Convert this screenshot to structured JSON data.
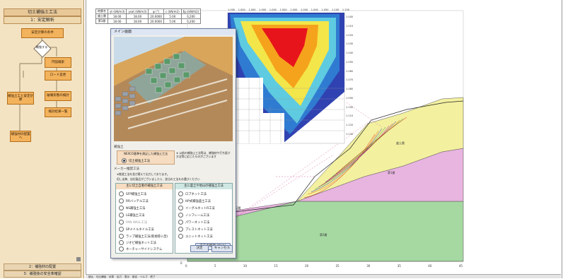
{
  "left_panel": {
    "title": "切土補強土工法",
    "section1": "1：安定解析",
    "flow": {
      "design_conditions": "安定計算の条件",
      "decision": "補強する",
      "circular_slip": "円弧検索",
      "data_setting": "ロード変更",
      "failure_mode": "破壊形態の検討",
      "result_list": "検討結果一覧",
      "search_calc": "補強土工と安定計算",
      "final": "補強材の配置へ"
    },
    "section2": "2：補強材の配置",
    "section3": "3：補強後の安全率確認"
  },
  "soil_table": {
    "headers": [
      "地層名",
      "γt (kN/m3)",
      "γsat (kN/m3)",
      "φ (°)",
      "c (kN/m2)",
      "Ep (kN/m2)"
    ],
    "rows": [
      [
        "盛土層",
        "18.00",
        "18.00",
        "20.0000",
        "5.00",
        "6,200"
      ],
      [
        "第1層",
        "18.00",
        "18.00",
        "20.0000",
        "5.00",
        "6,200"
      ]
    ]
  },
  "dialog": {
    "title": "メイン画面",
    "reinforce_label": "補強土",
    "option_main": "NEXCO基準を満足した補強土工法",
    "option_main_radio": "切土補強土工法",
    "note": "※ 以前の補強土工法等は、補強材や打ち設け方法等に応じたものがございます",
    "maker_label": "メーカー推奨工法",
    "maker_note": "※推奨工法を並び替えて出力しております。",
    "maker_note2": "但し出典、自社製品がございましたら、該当の工法をお選びください",
    "group_left_title": "主に切土自重の補強土工法",
    "group_right_title": "主に盛土や地山の補強土工法",
    "left_options": [
      "SFP補強土工法",
      "RRバッテル工法",
      "NS補強土工法",
      "LE補強土工法",
      "PAN WALL工法",
      "SPメイルネイル工法",
      "ラップ補強土工法(新規導入型)",
      "ジオピ補強ネット工法",
      "ネーチャーサイドシステム"
    ],
    "right_options": [
      "ロブネット工法",
      "HP式補強盛土工法",
      "イーグルネットR工法",
      "ノンフレーム工法",
      "パワーネット工法",
      "プレストネット工法",
      "ユニットネット工法"
    ],
    "detail_button": "工法の概要 (Web)",
    "ok_button": "決定",
    "cancel_button": "キャンセル"
  },
  "contour": {
    "top_labels": [
      "1.000",
      "1.000",
      "1.000",
      "1.000",
      "1.000",
      "1.000",
      "1.000",
      "1.000",
      "1.000",
      "1.050",
      "1.100",
      "1.150"
    ],
    "right_labels": [
      "1.000",
      "1.010",
      "1.020",
      "1.030",
      "1.040",
      "1.050",
      "1.060",
      "1.070",
      "1.080",
      "1.090",
      "1.100",
      "1.110",
      "1.120",
      "1.130"
    ]
  },
  "cross_section": {
    "layer_labels": [
      "盛土層",
      "第1層",
      "第2層",
      "第3層"
    ],
    "y_axis": [
      "40",
      "30",
      "20",
      "10",
      "0"
    ],
    "x_axis": [
      "0",
      "5",
      "10",
      "15",
      "20",
      "25",
      "30",
      "35",
      "40",
      "45"
    ]
  },
  "status_bar": {
    "tabs": [
      "読込",
      "切土補強",
      "計算",
      "出力",
      "表示",
      "設定",
      "ヘルプ",
      "終了"
    ]
  },
  "colors": {
    "left_bg": "#f4e3c2",
    "flow_box": "#f3b25c",
    "fill_top": "#f3f0a0",
    "fill_mid": "#e8b4e0",
    "fill_bottom": "#a6d8a2",
    "contour_hot": "#e8141c",
    "contour_cold": "#1a2da8"
  }
}
